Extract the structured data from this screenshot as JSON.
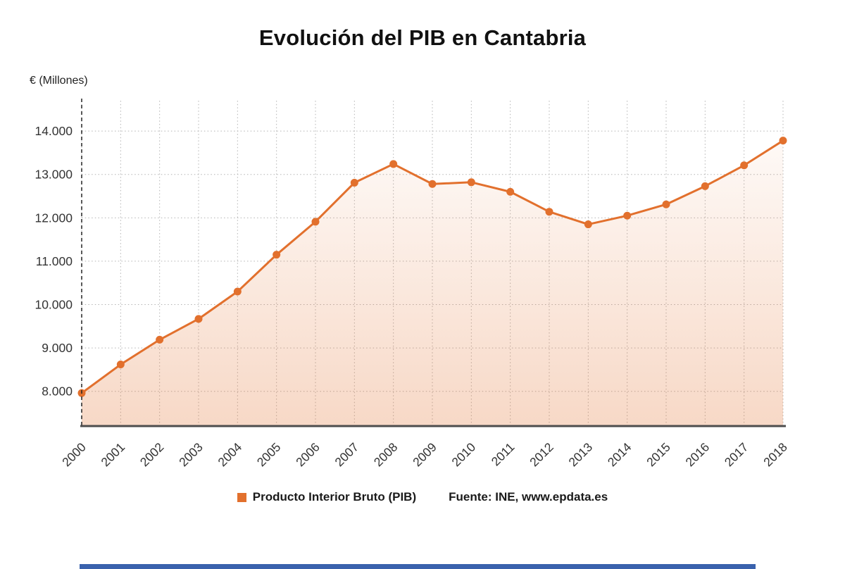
{
  "title": "Evolución del PIB en Cantabria",
  "y_axis_unit": "€ (Millones)",
  "legend": {
    "label": "Producto Interior Bruto (PIB)"
  },
  "source": "Fuente: INE, www.epdata.es",
  "colors": {
    "accent": "#e2702d",
    "footer_bar": "#3a62ad",
    "grid": "#b3b3b3",
    "axis": "#4d4d4d",
    "tick_text": "#333333"
  },
  "chart_data": {
    "type": "line",
    "title": "Evolución del PIB en Cantabria",
    "xlabel": "",
    "ylabel": "€ (Millones)",
    "x": [
      2000,
      2001,
      2002,
      2003,
      2004,
      2005,
      2006,
      2007,
      2008,
      2009,
      2010,
      2011,
      2012,
      2013,
      2014,
      2015,
      2016,
      2017,
      2018
    ],
    "series": [
      {
        "name": "Producto Interior Bruto (PIB)",
        "values": [
          7960,
          8620,
          9190,
          9670,
          10300,
          11150,
          11910,
          12810,
          13240,
          12780,
          12820,
          12600,
          12140,
          11850,
          12050,
          12310,
          12730,
          13210,
          13780
        ]
      }
    ],
    "ylim": [
      7200,
      14700
    ],
    "yticks": [
      8000,
      9000,
      10000,
      11000,
      12000,
      13000,
      14000
    ],
    "grid": true,
    "legend_position": "bottom",
    "source": "Fuente: INE, www.epdata.es"
  }
}
